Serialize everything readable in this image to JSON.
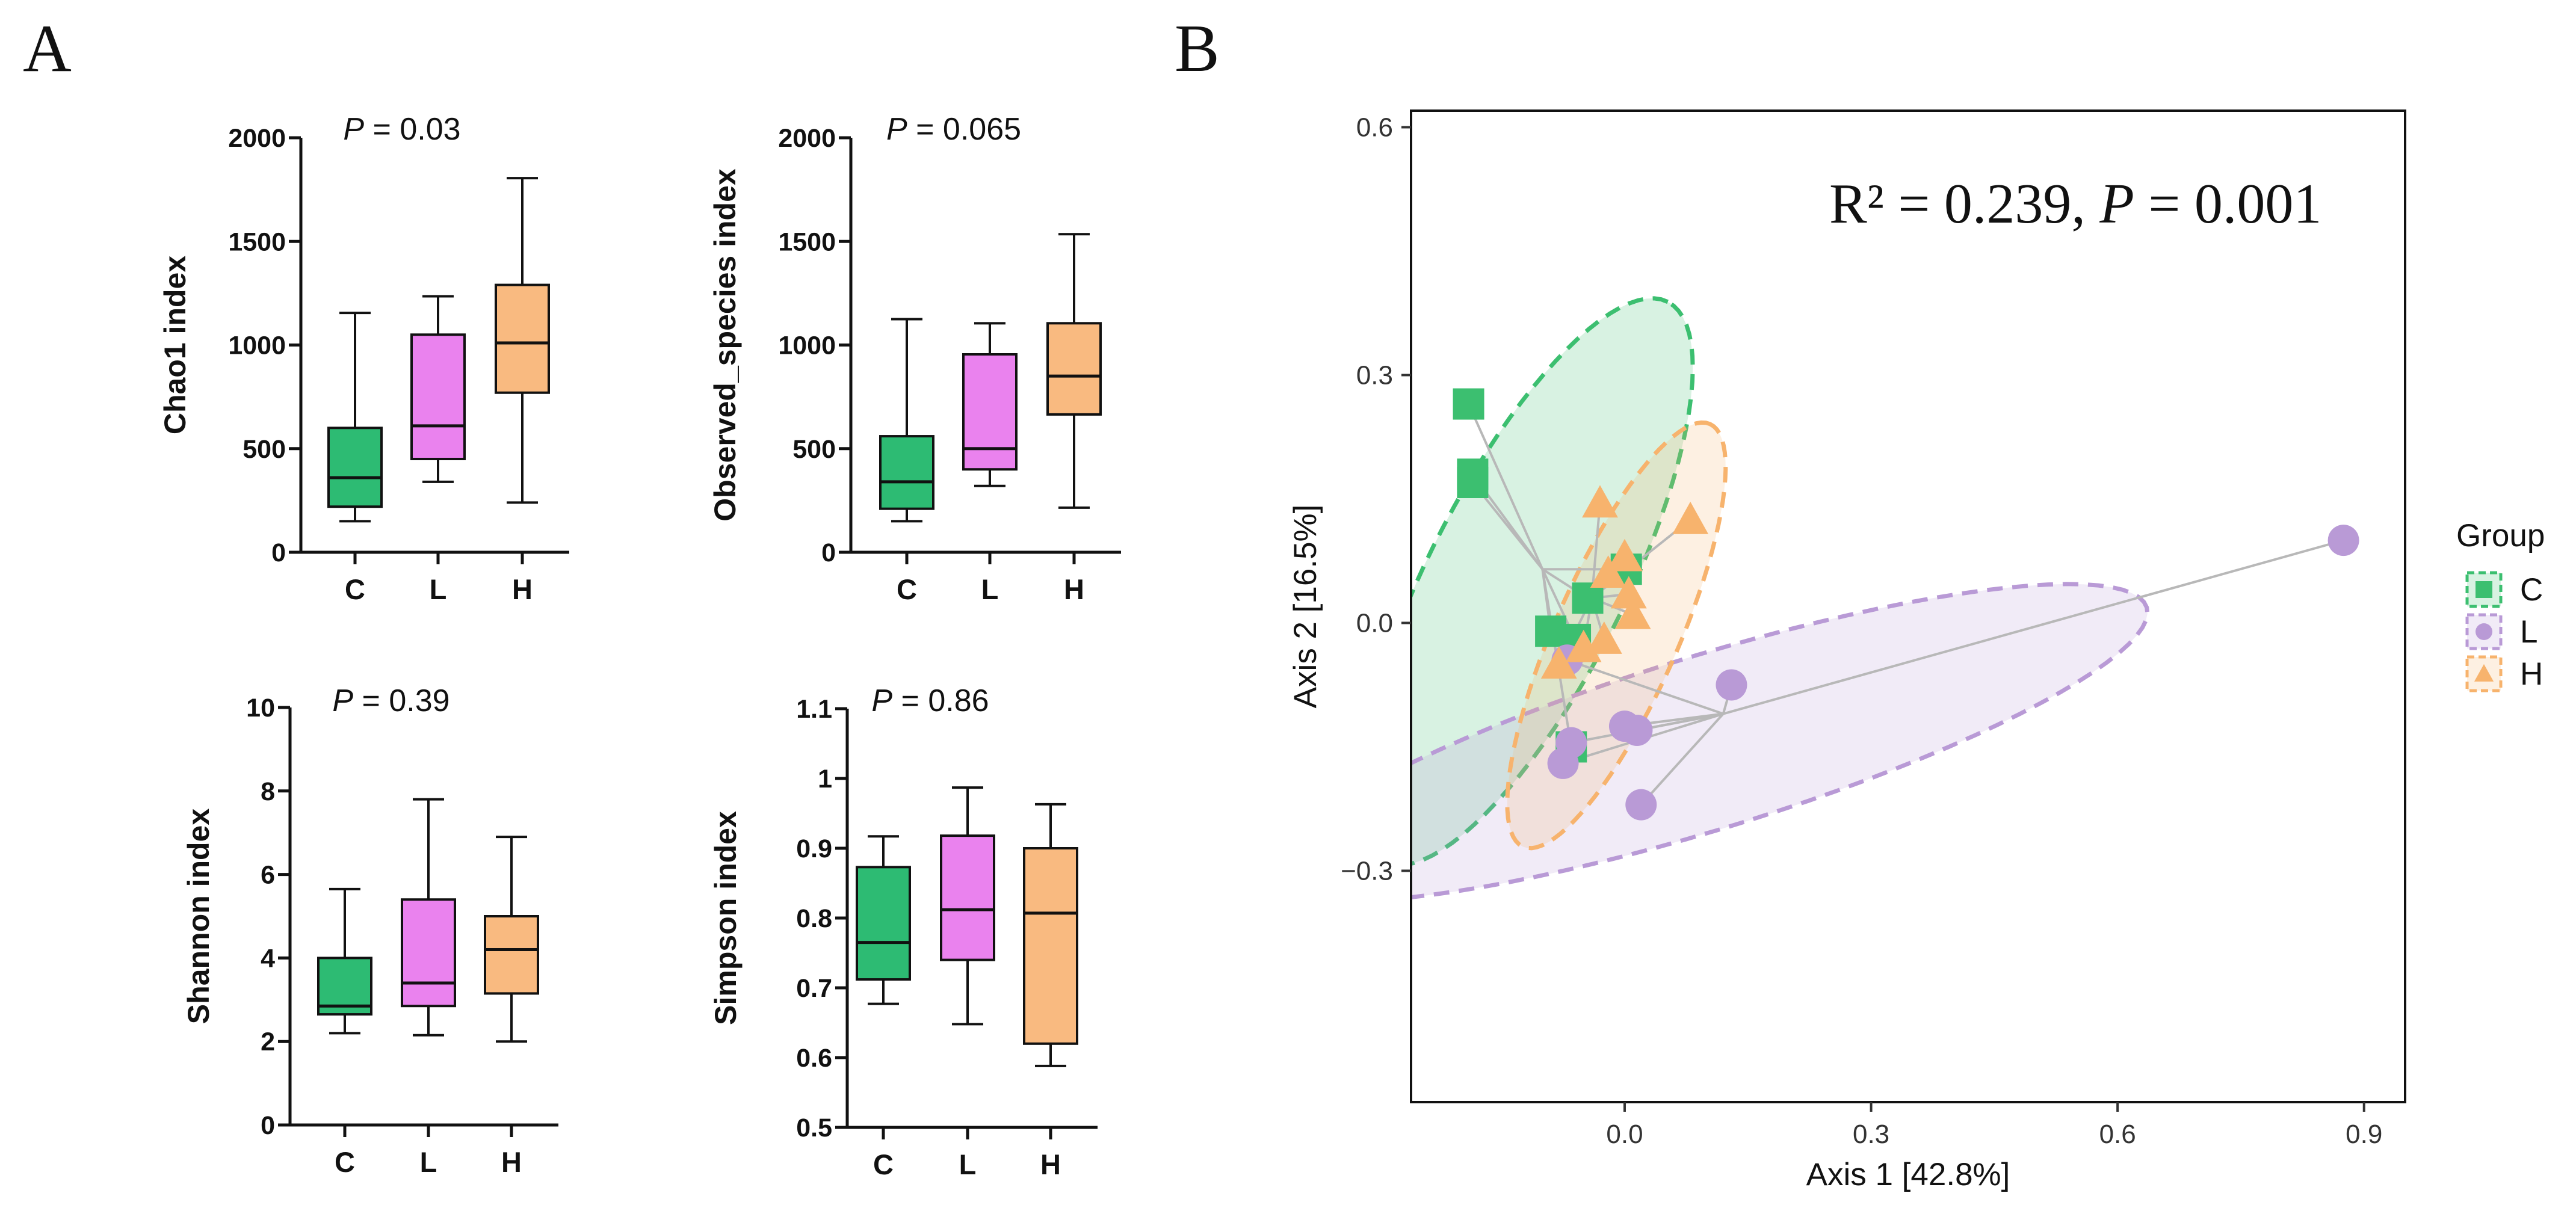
{
  "panels": {
    "a_label": "A",
    "b_label": "B"
  },
  "colors": {
    "C": "#2dbb73",
    "L": "#ea82ee",
    "H": "#f9ba80",
    "pC": "#3cbf70",
    "pL": "#b99ad6",
    "pH": "#f7b36d",
    "line": "#b8b8b8"
  },
  "chart_data": [
    {
      "type": "box",
      "id": "chao1",
      "categories": [
        "C",
        "L",
        "H"
      ],
      "ylabel": "Chao1 index",
      "ylim": [
        0,
        2000
      ],
      "yticks": [
        0,
        500,
        1000,
        1500,
        2000
      ],
      "p_label": "P",
      "p_value": " = 0.03",
      "boxes": [
        {
          "group": "C",
          "min": 150,
          "q1": 220,
          "median": 360,
          "q3": 600,
          "max": 1155
        },
        {
          "group": "L",
          "min": 340,
          "q1": 450,
          "median": 610,
          "q3": 1050,
          "max": 1235
        },
        {
          "group": "H",
          "min": 240,
          "q1": 770,
          "median": 1010,
          "q3": 1290,
          "max": 1805
        }
      ]
    },
    {
      "type": "box",
      "id": "observed",
      "categories": [
        "C",
        "L",
        "H"
      ],
      "ylabel": "Observed_species index",
      "ylim": [
        0,
        2000
      ],
      "yticks": [
        0,
        500,
        1000,
        1500,
        2000
      ],
      "p_label": "P",
      "p_value": " = 0.065",
      "boxes": [
        {
          "group": "C",
          "min": 150,
          "q1": 210,
          "median": 340,
          "q3": 560,
          "max": 1125
        },
        {
          "group": "L",
          "min": 320,
          "q1": 400,
          "median": 500,
          "q3": 955,
          "max": 1105
        },
        {
          "group": "H",
          "min": 215,
          "q1": 665,
          "median": 850,
          "q3": 1105,
          "max": 1535
        }
      ]
    },
    {
      "type": "box",
      "id": "shannon",
      "categories": [
        "C",
        "L",
        "H"
      ],
      "ylabel": "Shannon index",
      "ylim": [
        0,
        10
      ],
      "yticks": [
        0,
        2,
        4,
        6,
        8,
        10
      ],
      "p_label": "P",
      "p_value": " = 0.39",
      "boxes": [
        {
          "group": "C",
          "min": 2.2,
          "q1": 2.65,
          "median": 2.85,
          "q3": 4.0,
          "max": 5.65
        },
        {
          "group": "L",
          "min": 2.15,
          "q1": 2.85,
          "median": 3.4,
          "q3": 5.4,
          "max": 7.8
        },
        {
          "group": "H",
          "min": 2.0,
          "q1": 3.15,
          "median": 4.2,
          "q3": 5.0,
          "max": 6.9
        }
      ]
    },
    {
      "type": "box",
      "id": "simpson",
      "categories": [
        "C",
        "L",
        "H"
      ],
      "ylabel": "Simpson index",
      "ylim": [
        0.5,
        1.1
      ],
      "yticks": [
        0.5,
        0.6,
        0.7,
        0.8,
        0.9,
        1.0,
        1.1
      ],
      "p_label": "P",
      "p_value": " = 0.86",
      "boxes": [
        {
          "group": "C",
          "min": 0.677,
          "q1": 0.712,
          "median": 0.765,
          "q3": 0.873,
          "max": 0.917
        },
        {
          "group": "L",
          "min": 0.648,
          "q1": 0.74,
          "median": 0.812,
          "q3": 0.918,
          "max": 0.987
        },
        {
          "group": "H",
          "min": 0.588,
          "q1": 0.62,
          "median": 0.807,
          "q3": 0.9,
          "max": 0.963
        }
      ]
    },
    {
      "type": "scatter",
      "id": "pcoa",
      "xlabel": "Axis 1 [42.8%]",
      "ylabel": "Axis 2 [16.5%]",
      "xlim": [
        -0.26,
        0.95
      ],
      "ylim": [
        -0.58,
        0.62
      ],
      "xticks": [
        0.0,
        0.3,
        0.6,
        0.9
      ],
      "xtick_labels": [
        "0.0",
        "0.3",
        "0.6",
        "0.9"
      ],
      "yticks": [
        -0.3,
        0.0,
        0.3,
        0.6
      ],
      "ytick_labels": [
        "−0.3",
        "0.0",
        "0.3",
        "0.6"
      ],
      "stat": {
        "r2": "R² = 0.239, ",
        "p_label": "P",
        "p_value": " = 0.001"
      },
      "legend": {
        "title": "Group",
        "position": "right",
        "items": [
          "C",
          "L",
          "H"
        ]
      },
      "groups": [
        {
          "name": "C",
          "marker": "square",
          "centroid": [
            -0.1,
            0.065
          ],
          "ellipse": {
            "cx": -0.12,
            "cy": 0.05,
            "rx": 0.38,
            "ry": 0.12,
            "angle_deg": 63
          },
          "points": [
            [
              -0.19,
              0.265
            ],
            [
              -0.185,
              0.18
            ],
            [
              -0.185,
              0.17
            ],
            [
              0.002,
              0.065
            ],
            [
              -0.045,
              0.03
            ],
            [
              -0.09,
              -0.01
            ],
            [
              -0.06,
              -0.02
            ],
            [
              -0.065,
              -0.15
            ]
          ]
        },
        {
          "name": "L",
          "marker": "circle",
          "centroid": [
            0.12,
            -0.11
          ],
          "ellipse": {
            "cx": 0.1,
            "cy": -0.145,
            "rx": 0.56,
            "ry": 0.105,
            "angle_deg": 17
          },
          "points": [
            [
              0.875,
              0.1
            ],
            [
              0.13,
              -0.075
            ],
            [
              0.0,
              -0.125
            ],
            [
              0.015,
              -0.13
            ],
            [
              -0.065,
              -0.145
            ],
            [
              -0.075,
              -0.17
            ],
            [
              0.02,
              -0.22
            ],
            [
              -0.07,
              -0.045
            ]
          ]
        },
        {
          "name": "H",
          "marker": "triangle",
          "centroid": [
            -0.04,
            0.03
          ],
          "ellipse": {
            "cx": -0.01,
            "cy": -0.015,
            "rx": 0.28,
            "ry": 0.075,
            "angle_deg": 66
          },
          "points": [
            [
              0.08,
              0.125
            ],
            [
              -0.03,
              0.145
            ],
            [
              0.0,
              0.08
            ],
            [
              -0.02,
              0.06
            ],
            [
              0.005,
              0.035
            ],
            [
              0.01,
              0.01
            ],
            [
              -0.05,
              -0.03
            ],
            [
              -0.025,
              -0.02
            ],
            [
              -0.08,
              -0.05
            ]
          ]
        }
      ]
    }
  ]
}
